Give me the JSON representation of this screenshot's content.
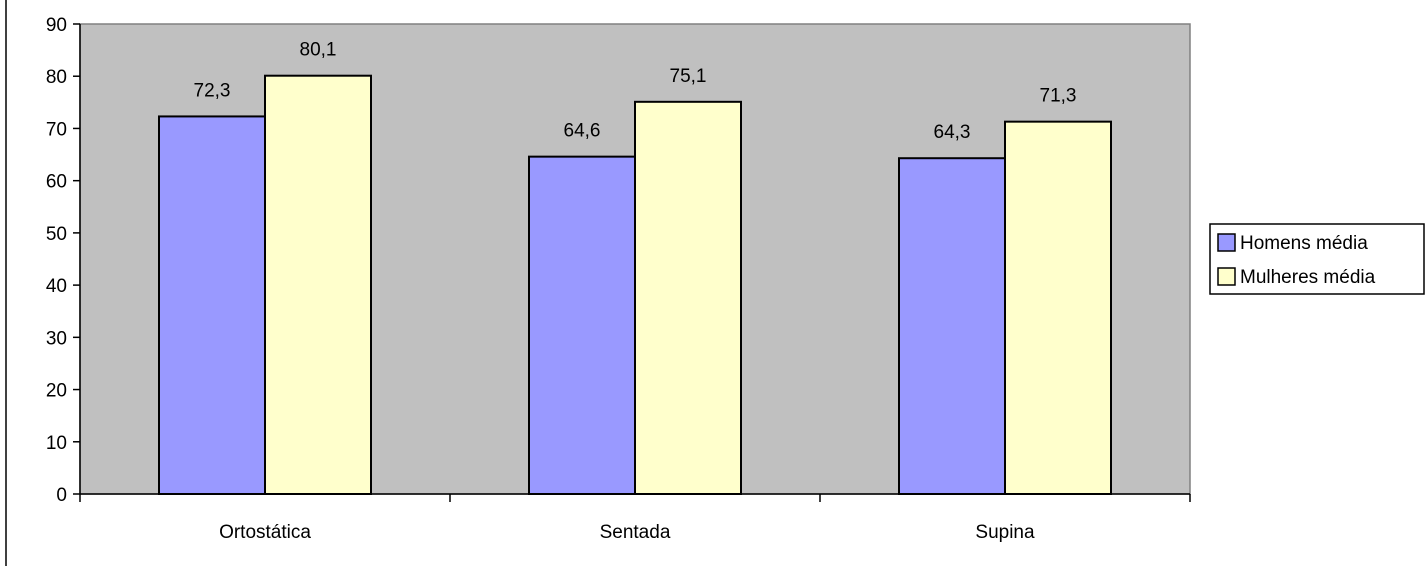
{
  "chart_data": {
    "type": "bar",
    "title": "",
    "xlabel": "",
    "ylabel": "",
    "categories": [
      "Ortostática",
      "Sentada",
      "Supina"
    ],
    "series": [
      {
        "name": "Homens média",
        "values": [
          72.3,
          64.6,
          64.3
        ],
        "labels": [
          "72,3",
          "64,6",
          "64,3"
        ],
        "color": "#9999FF"
      },
      {
        "name": "Mulheres média",
        "values": [
          80.1,
          75.1,
          71.3
        ],
        "labels": [
          "80,1",
          "75,1",
          "71,3"
        ],
        "color": "#FFFFCC"
      }
    ],
    "ylim": [
      0,
      90
    ],
    "yticks": [
      "0",
      "10",
      "20",
      "30",
      "40",
      "50",
      "60",
      "70",
      "80",
      "90"
    ],
    "plot_background": "#C0C0C0",
    "grid": false,
    "legend_position": "right"
  }
}
